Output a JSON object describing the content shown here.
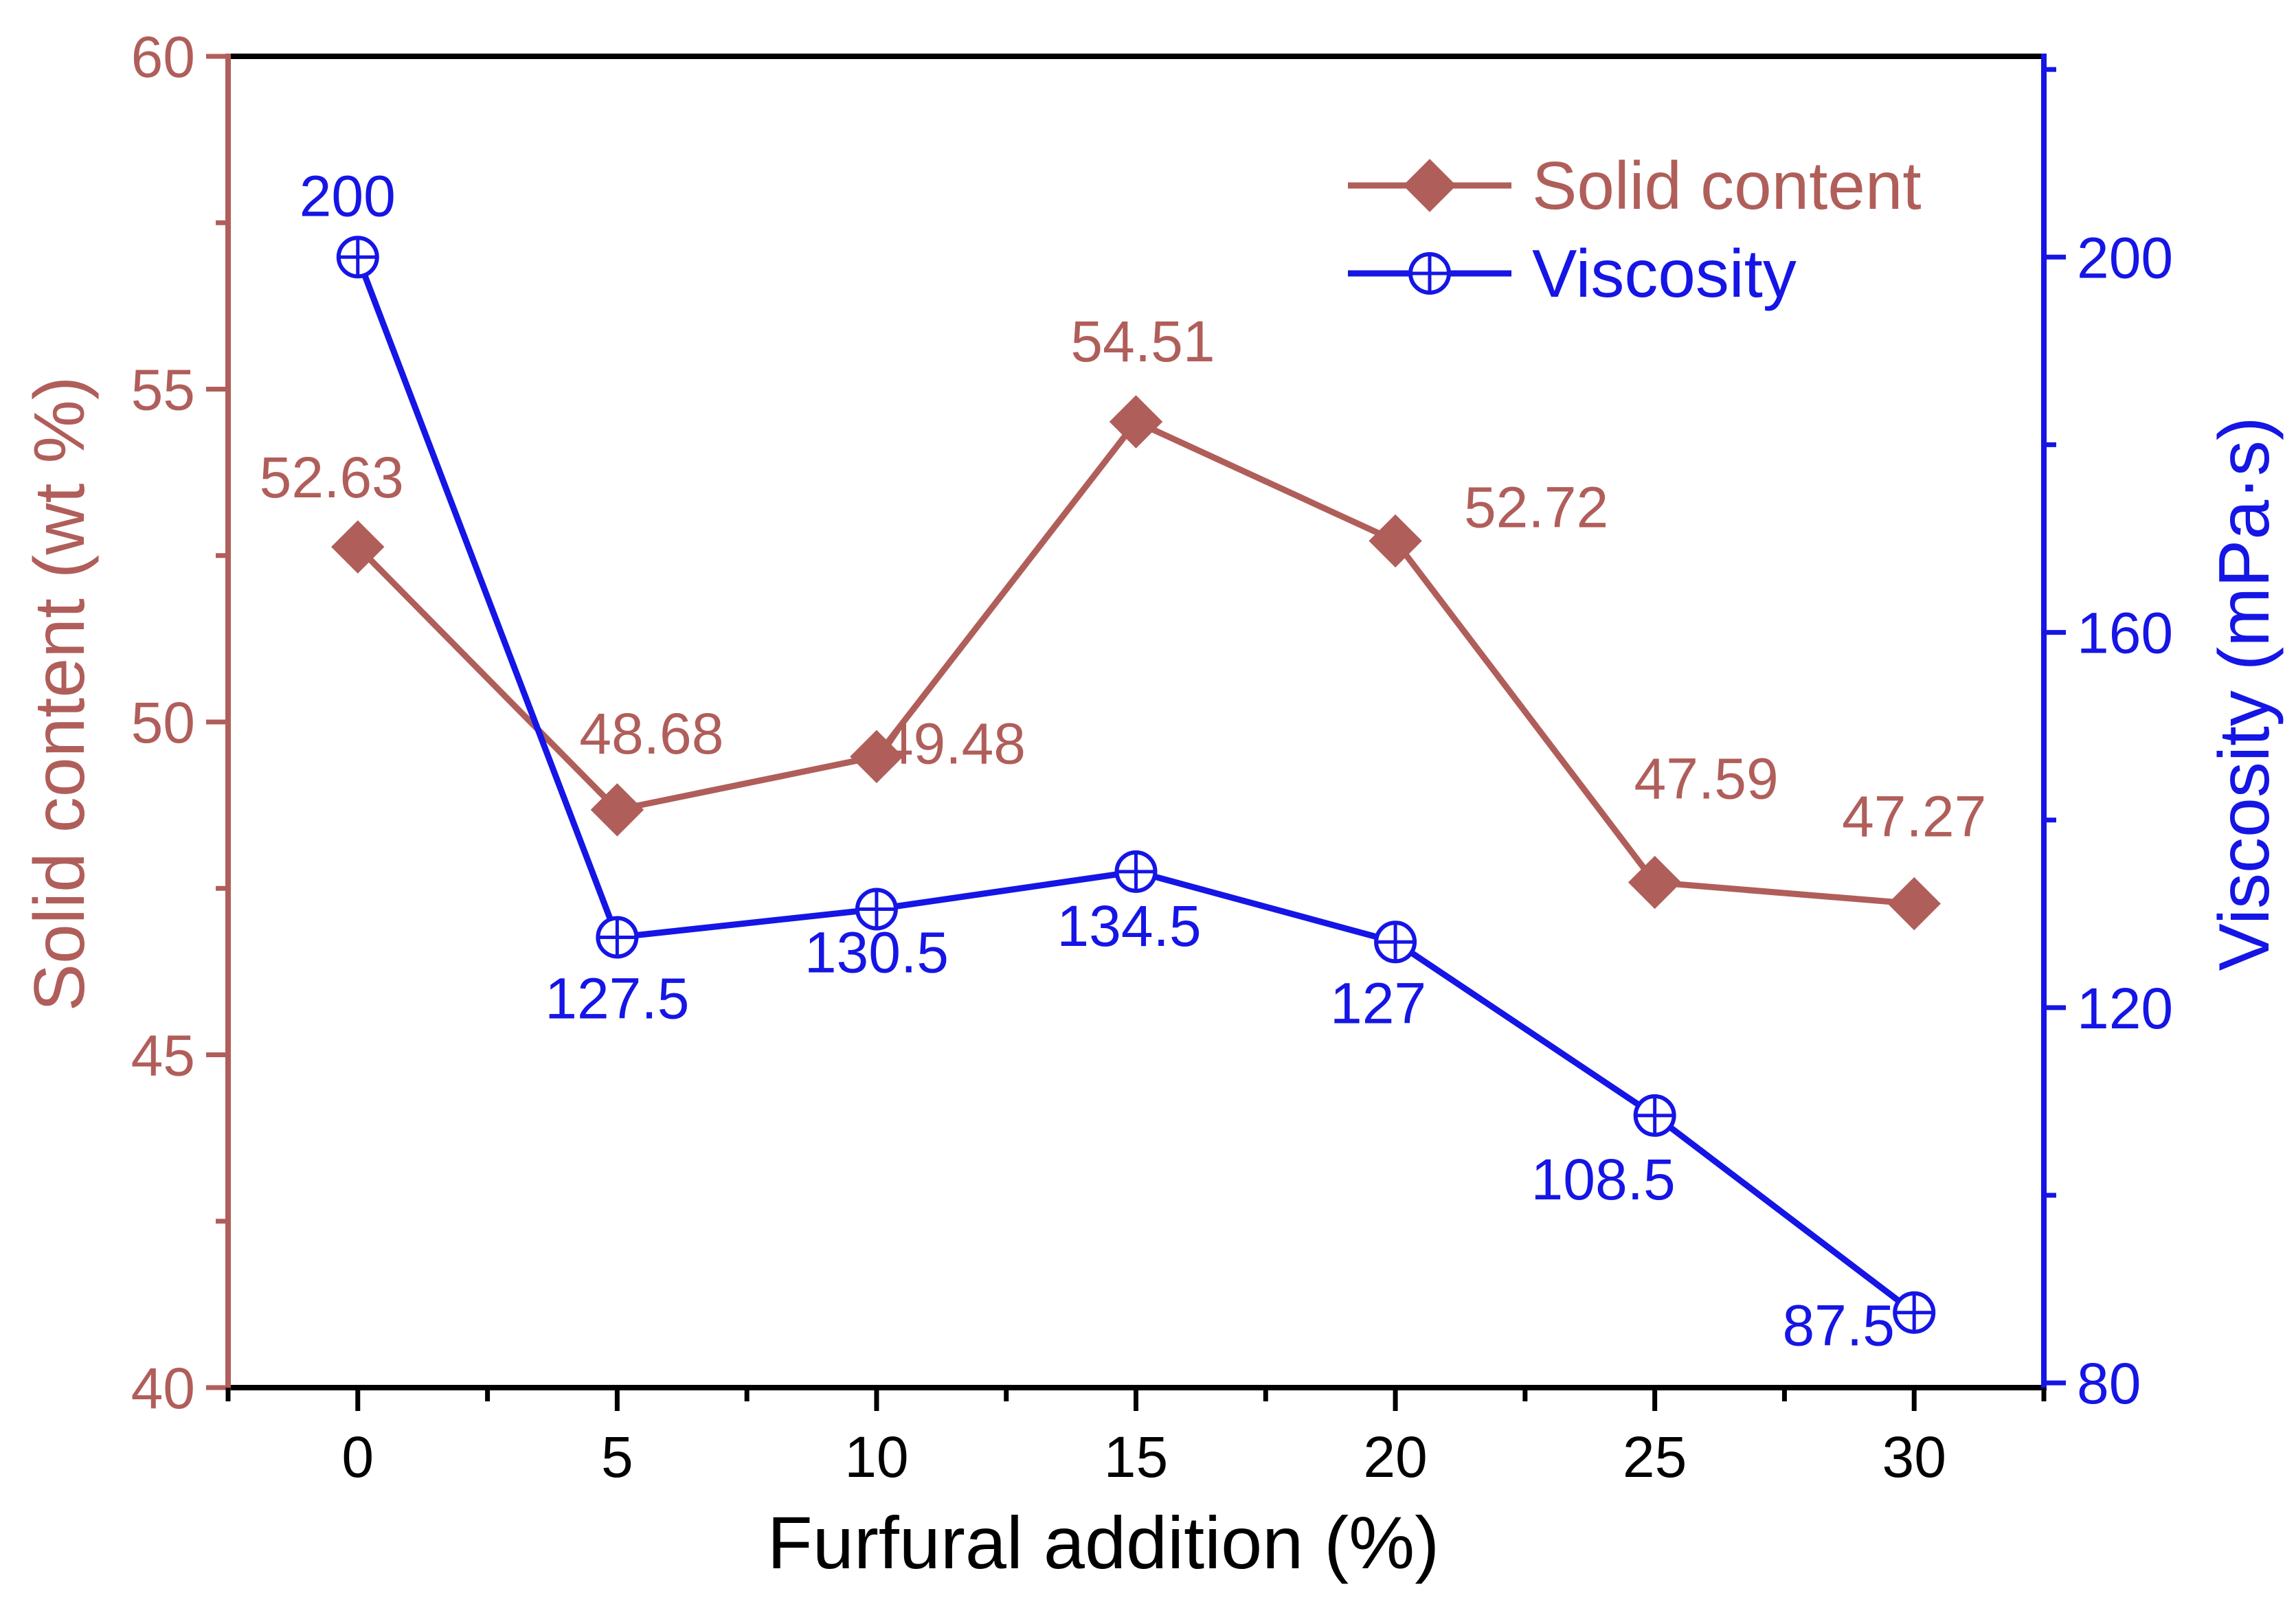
{
  "colors": {
    "solid": "#b05e5a",
    "viscosity": "#1515e6",
    "axis": "#000000"
  },
  "chart_data": {
    "type": "line",
    "x": [
      0,
      5,
      10,
      15,
      20,
      25,
      30
    ],
    "xlabel": "Furfural addition (%)",
    "xlim": [
      -2.5,
      32.5
    ],
    "x_ticks": [
      0,
      5,
      10,
      15,
      20,
      25,
      30
    ],
    "x_tick_labels": [
      "0",
      "5",
      "10",
      "15",
      "20",
      "25",
      "30"
    ],
    "y_left": {
      "label": "Solid content (wt %)",
      "lim": [
        40,
        60
      ],
      "ticks": [
        40,
        45,
        50,
        55,
        60
      ],
      "tick_labels": [
        "40",
        "45",
        "50",
        "55",
        "60"
      ]
    },
    "y_right": {
      "label": "Viscosity (mPa·s)",
      "lim": [
        79.5,
        221.4
      ],
      "ticks": [
        80,
        120,
        160,
        200
      ],
      "tick_labels": [
        "80",
        "120",
        "160",
        "200"
      ]
    },
    "series": [
      {
        "name": "Solid content",
        "axis": "left",
        "marker": "diamond",
        "values": [
          52.63,
          48.68,
          49.48,
          54.51,
          52.72,
          47.59,
          47.27
        ],
        "labels": [
          "52.63",
          "48.68",
          "49.48",
          "54.51",
          "52.72",
          "47.59",
          "47.27"
        ]
      },
      {
        "name": "Viscosity",
        "axis": "right",
        "marker": "circle-plus",
        "values": [
          200,
          127.5,
          130.5,
          134.5,
          127,
          108.5,
          87.5
        ],
        "labels": [
          "200",
          "127.5",
          "130.5",
          "134.5",
          "127",
          "108.5",
          "87.5"
        ]
      }
    ],
    "grid": false,
    "legend": "top-right"
  }
}
